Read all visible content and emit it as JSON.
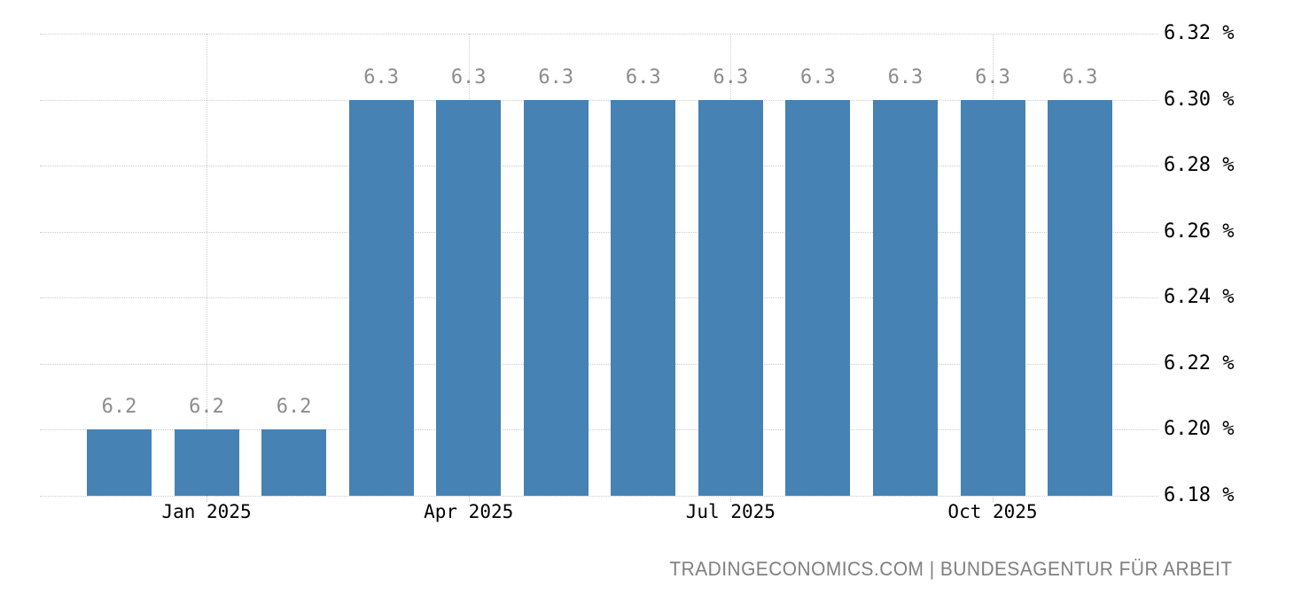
{
  "chart_data": {
    "type": "bar",
    "title": "",
    "xlabel": "",
    "ylabel": "",
    "values": [
      6.2,
      6.2,
      6.2,
      6.3,
      6.3,
      6.3,
      6.3,
      6.3,
      6.3,
      6.3,
      6.3,
      6.3
    ],
    "bar_value_labels": [
      "6.2",
      "6.2",
      "6.2",
      "6.3",
      "6.3",
      "6.3",
      "6.3",
      "6.3",
      "6.3",
      "6.3",
      "6.3",
      "6.3"
    ],
    "x_ticks": [
      {
        "label": "Jan 2025",
        "bar_index": 1
      },
      {
        "label": "Apr 2025",
        "bar_index": 4
      },
      {
        "label": "Jul 2025",
        "bar_index": 7
      },
      {
        "label": "Oct 2025",
        "bar_index": 10
      }
    ],
    "y_ticks": [
      {
        "value": 6.32,
        "label": "6.32 %"
      },
      {
        "value": 6.3,
        "label": "6.30 %"
      },
      {
        "value": 6.28,
        "label": "6.28 %"
      },
      {
        "value": 6.26,
        "label": "6.26 %"
      },
      {
        "value": 6.24,
        "label": "6.24 %"
      },
      {
        "value": 6.22,
        "label": "6.22 %"
      },
      {
        "value": 6.2,
        "label": "6.20 %"
      },
      {
        "value": 6.18,
        "label": "6.18 %"
      }
    ],
    "ylim": [
      6.18,
      6.32
    ],
    "grid": true,
    "legend_position": "none"
  },
  "attribution": "TRADINGECONOMICS.COM | BUNDESAGENTUR FÜR ARBEIT",
  "colors": {
    "bar": "#4682b4",
    "value_label": "#8c8c8c",
    "axis_label": "#000000",
    "gridline": "#cccccc",
    "attribution": "#7f7f7f",
    "background": "#ffffff"
  }
}
